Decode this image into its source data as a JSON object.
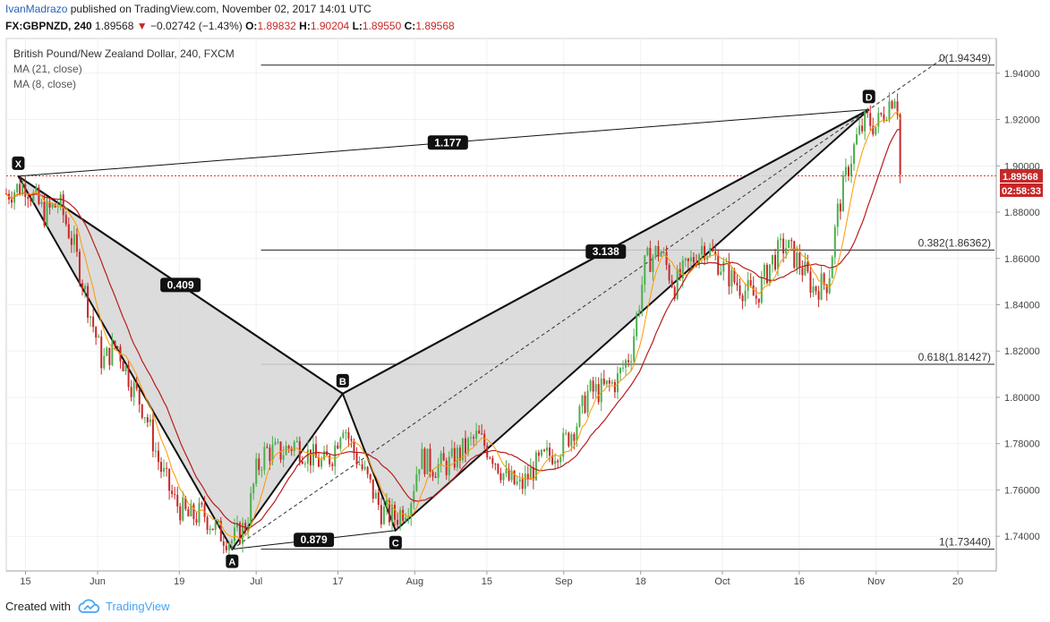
{
  "header": {
    "author": "IvanMadrazo",
    "published": "published on TradingView.com, November 02, 2017 14:01 UTC",
    "symbol": "FX:GBPNZD, 240",
    "last": "1.89568",
    "change_arrow": "▼",
    "change": "−0.02742 (−1.43%)",
    "o_label": "O:",
    "o_value": "1.89832",
    "h_label": "H:",
    "h_value": "1.90204",
    "l_label": "L:",
    "l_value": "1.89550",
    "c_label": "C:",
    "c_value": "1.89568"
  },
  "legend": {
    "title": "British Pound/New Zealand Dollar, 240, FXCM",
    "ma1": "MA (21, close)",
    "ma2": "MA (8, close)"
  },
  "price_tag": {
    "price": "1.89568",
    "countdown": "02:58:33"
  },
  "footer": {
    "created_with": "Created with",
    "brand": "TradingView"
  },
  "colors": {
    "up": "#4caf50",
    "down": "#c62828",
    "ma21": "#b71c1c",
    "ma8": "#ff9800",
    "pattern_fill": "#d6d6d6",
    "price_line": "#e53935"
  },
  "chart_data": {
    "type": "candlestick",
    "title": "British Pound/New Zealand Dollar, 240, FXCM",
    "ylim": [
      1.725,
      1.955
    ],
    "y_ticks": [
      "1.94000",
      "1.92000",
      "1.90000",
      "1.88000",
      "1.86000",
      "1.84000",
      "1.82000",
      "1.80000",
      "1.78000",
      "1.76000",
      "1.74000"
    ],
    "y_tick_values": [
      1.94,
      1.92,
      1.9,
      1.88,
      1.86,
      1.84,
      1.82,
      1.8,
      1.78,
      1.76,
      1.74
    ],
    "x_ticks": [
      {
        "label": "15",
        "t": 0.04
      },
      {
        "label": "Jun",
        "t": 0.19
      },
      {
        "label": "19",
        "t": 0.36
      },
      {
        "label": "Jul",
        "t": 0.52
      },
      {
        "label": "17",
        "t": 0.69
      },
      {
        "label": "Aug",
        "t": 0.85
      },
      {
        "label": "15",
        "t": 1.0
      },
      {
        "label": "Sep",
        "t": 1.16
      },
      {
        "label": "18",
        "t": 1.32
      },
      {
        "label": "Oct",
        "t": 1.49
      },
      {
        "label": "16",
        "t": 1.65
      },
      {
        "label": "Nov",
        "t": 1.81
      },
      {
        "label": "20",
        "t": 1.98
      }
    ],
    "x_range": [
      -0.0,
      2.06
    ],
    "series_path": [
      [
        0.0,
        1.888
      ],
      [
        0.04,
        1.892
      ],
      [
        0.08,
        1.879
      ],
      [
        0.11,
        1.884
      ],
      [
        0.14,
        1.866
      ],
      [
        0.17,
        1.84
      ],
      [
        0.2,
        1.815
      ],
      [
        0.23,
        1.823
      ],
      [
        0.26,
        1.806
      ],
      [
        0.29,
        1.793
      ],
      [
        0.32,
        1.77
      ],
      [
        0.35,
        1.755
      ],
      [
        0.38,
        1.748
      ],
      [
        0.41,
        1.75
      ],
      [
        0.44,
        1.742
      ],
      [
        0.47,
        1.738
      ],
      [
        0.5,
        1.745
      ],
      [
        0.52,
        1.768
      ],
      [
        0.54,
        1.777
      ],
      [
        0.57,
        1.776
      ],
      [
        0.6,
        1.78
      ],
      [
        0.63,
        1.775
      ],
      [
        0.66,
        1.771
      ],
      [
        0.68,
        1.776
      ],
      [
        0.7,
        1.79
      ],
      [
        0.72,
        1.778
      ],
      [
        0.75,
        1.765
      ],
      [
        0.78,
        1.751
      ],
      [
        0.81,
        1.748
      ],
      [
        0.84,
        1.755
      ],
      [
        0.86,
        1.774
      ],
      [
        0.89,
        1.77
      ],
      [
        0.92,
        1.771
      ],
      [
        0.95,
        1.777
      ],
      [
        0.98,
        1.783
      ],
      [
        1.01,
        1.776
      ],
      [
        1.04,
        1.765
      ],
      [
        1.07,
        1.761
      ],
      [
        1.1,
        1.77
      ],
      [
        1.13,
        1.775
      ],
      [
        1.16,
        1.78
      ],
      [
        1.19,
        1.79
      ],
      [
        1.21,
        1.802
      ],
      [
        1.24,
        1.803
      ],
      [
        1.27,
        1.807
      ],
      [
        1.3,
        1.82
      ],
      [
        1.33,
        1.858
      ],
      [
        1.36,
        1.864
      ],
      [
        1.39,
        1.848
      ],
      [
        1.42,
        1.857
      ],
      [
        1.45,
        1.866
      ],
      [
        1.48,
        1.859
      ],
      [
        1.51,
        1.851
      ],
      [
        1.54,
        1.846
      ],
      [
        1.56,
        1.843
      ],
      [
        1.59,
        1.858
      ],
      [
        1.62,
        1.866
      ],
      [
        1.65,
        1.858
      ],
      [
        1.68,
        1.847
      ],
      [
        1.71,
        1.85
      ],
      [
        1.73,
        1.88
      ],
      [
        1.75,
        1.898
      ],
      [
        1.77,
        1.912
      ],
      [
        1.79,
        1.92
      ],
      [
        1.81,
        1.917
      ],
      [
        1.83,
        1.925
      ],
      [
        1.85,
        1.932
      ],
      [
        1.855,
        1.925
      ],
      [
        1.86,
        1.896
      ]
    ],
    "moving_averages": [
      {
        "name": "MA (21, close)",
        "color": "#b71c1c"
      },
      {
        "name": "MA (8, close)",
        "color": "#ff9800"
      }
    ],
    "fib_levels": [
      {
        "ratio": "0",
        "value": "1.94349",
        "label": "0(1.94349)",
        "y": 1.94349
      },
      {
        "ratio": "0.382",
        "value": "1.86362",
        "label": "0.382(1.86362)",
        "y": 1.86362
      },
      {
        "ratio": "0.618",
        "value": "1.81427",
        "label": "0.618(1.81427)",
        "y": 1.81427
      },
      {
        "ratio": "1",
        "value": "1.73440",
        "label": "1(1.73440)",
        "y": 1.7344
      }
    ],
    "pattern_points": [
      {
        "label": "X",
        "t": 0.025,
        "y": 1.8955
      },
      {
        "label": "A",
        "t": 0.47,
        "y": 1.7344
      },
      {
        "label": "B",
        "t": 0.7,
        "y": 1.8016
      },
      {
        "label": "C",
        "t": 0.81,
        "y": 1.7425
      },
      {
        "label": "D",
        "t": 1.795,
        "y": 1.9243
      }
    ],
    "ratios": [
      {
        "label": "0.409",
        "from": "X",
        "to": "B"
      },
      {
        "label": "0.879",
        "from": "A",
        "to": "C"
      },
      {
        "label": "3.138",
        "from": "B",
        "to": "D"
      },
      {
        "label": "1.177",
        "from": "X",
        "to": "D"
      }
    ],
    "current_price": 1.89568
  }
}
